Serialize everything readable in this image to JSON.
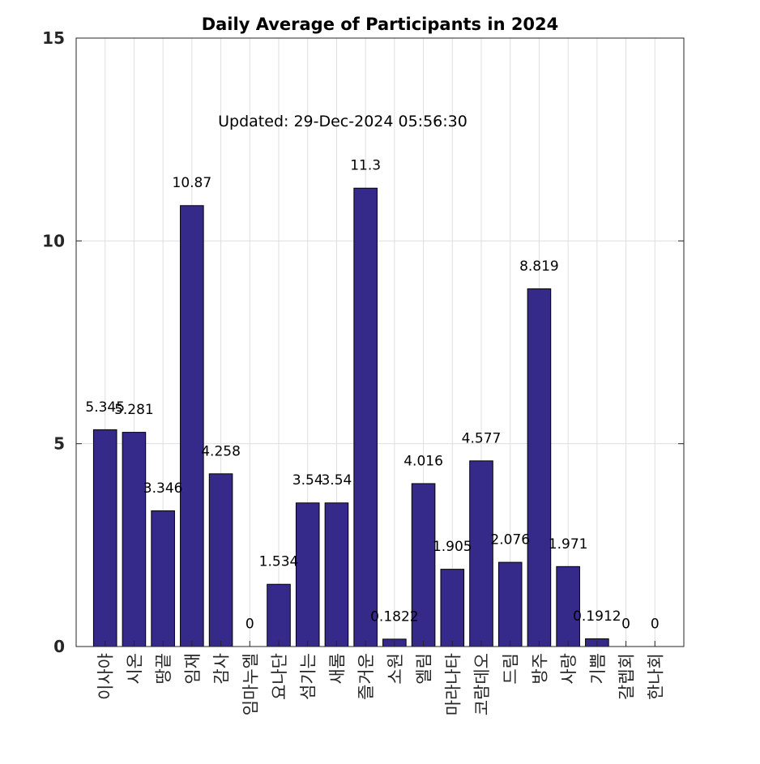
{
  "chart_data": {
    "type": "bar",
    "title": "Daily Average of Participants in 2024",
    "annotation": "Updated: 29-Dec-2024 05:56:30",
    "xlabel": "",
    "ylabel": "",
    "ylim": [
      0,
      15
    ],
    "yticks": [
      0,
      5,
      10,
      15
    ],
    "grid": true,
    "legend": "none",
    "bar_color": "#35298A",
    "categories": [
      "이사야",
      "시온",
      "땅끝",
      "임재",
      "감사",
      "임마누엘",
      "요나단",
      "섬기는",
      "새롬",
      "즐거운",
      "소원",
      "엘림",
      "마라나타",
      "코람데오",
      "드림",
      "방주",
      "사랑",
      "기쁨",
      "갈렙회",
      "한나회"
    ],
    "values": [
      5.345,
      5.281,
      3.346,
      10.87,
      4.258,
      0,
      1.534,
      3.54,
      3.54,
      11.3,
      0.1822,
      4.016,
      1.905,
      4.577,
      2.076,
      8.819,
      1.971,
      0.1912,
      0,
      0
    ],
    "value_labels": [
      "5.345",
      "5.281",
      "3.346",
      "10.87",
      "4.258",
      "0",
      "1.534",
      "3.54",
      "3.54",
      "11.3",
      "0.1822",
      "4.016",
      "1.905",
      "4.577",
      "2.076",
      "8.819",
      "1.971",
      "0.1912",
      "0",
      "0"
    ]
  }
}
